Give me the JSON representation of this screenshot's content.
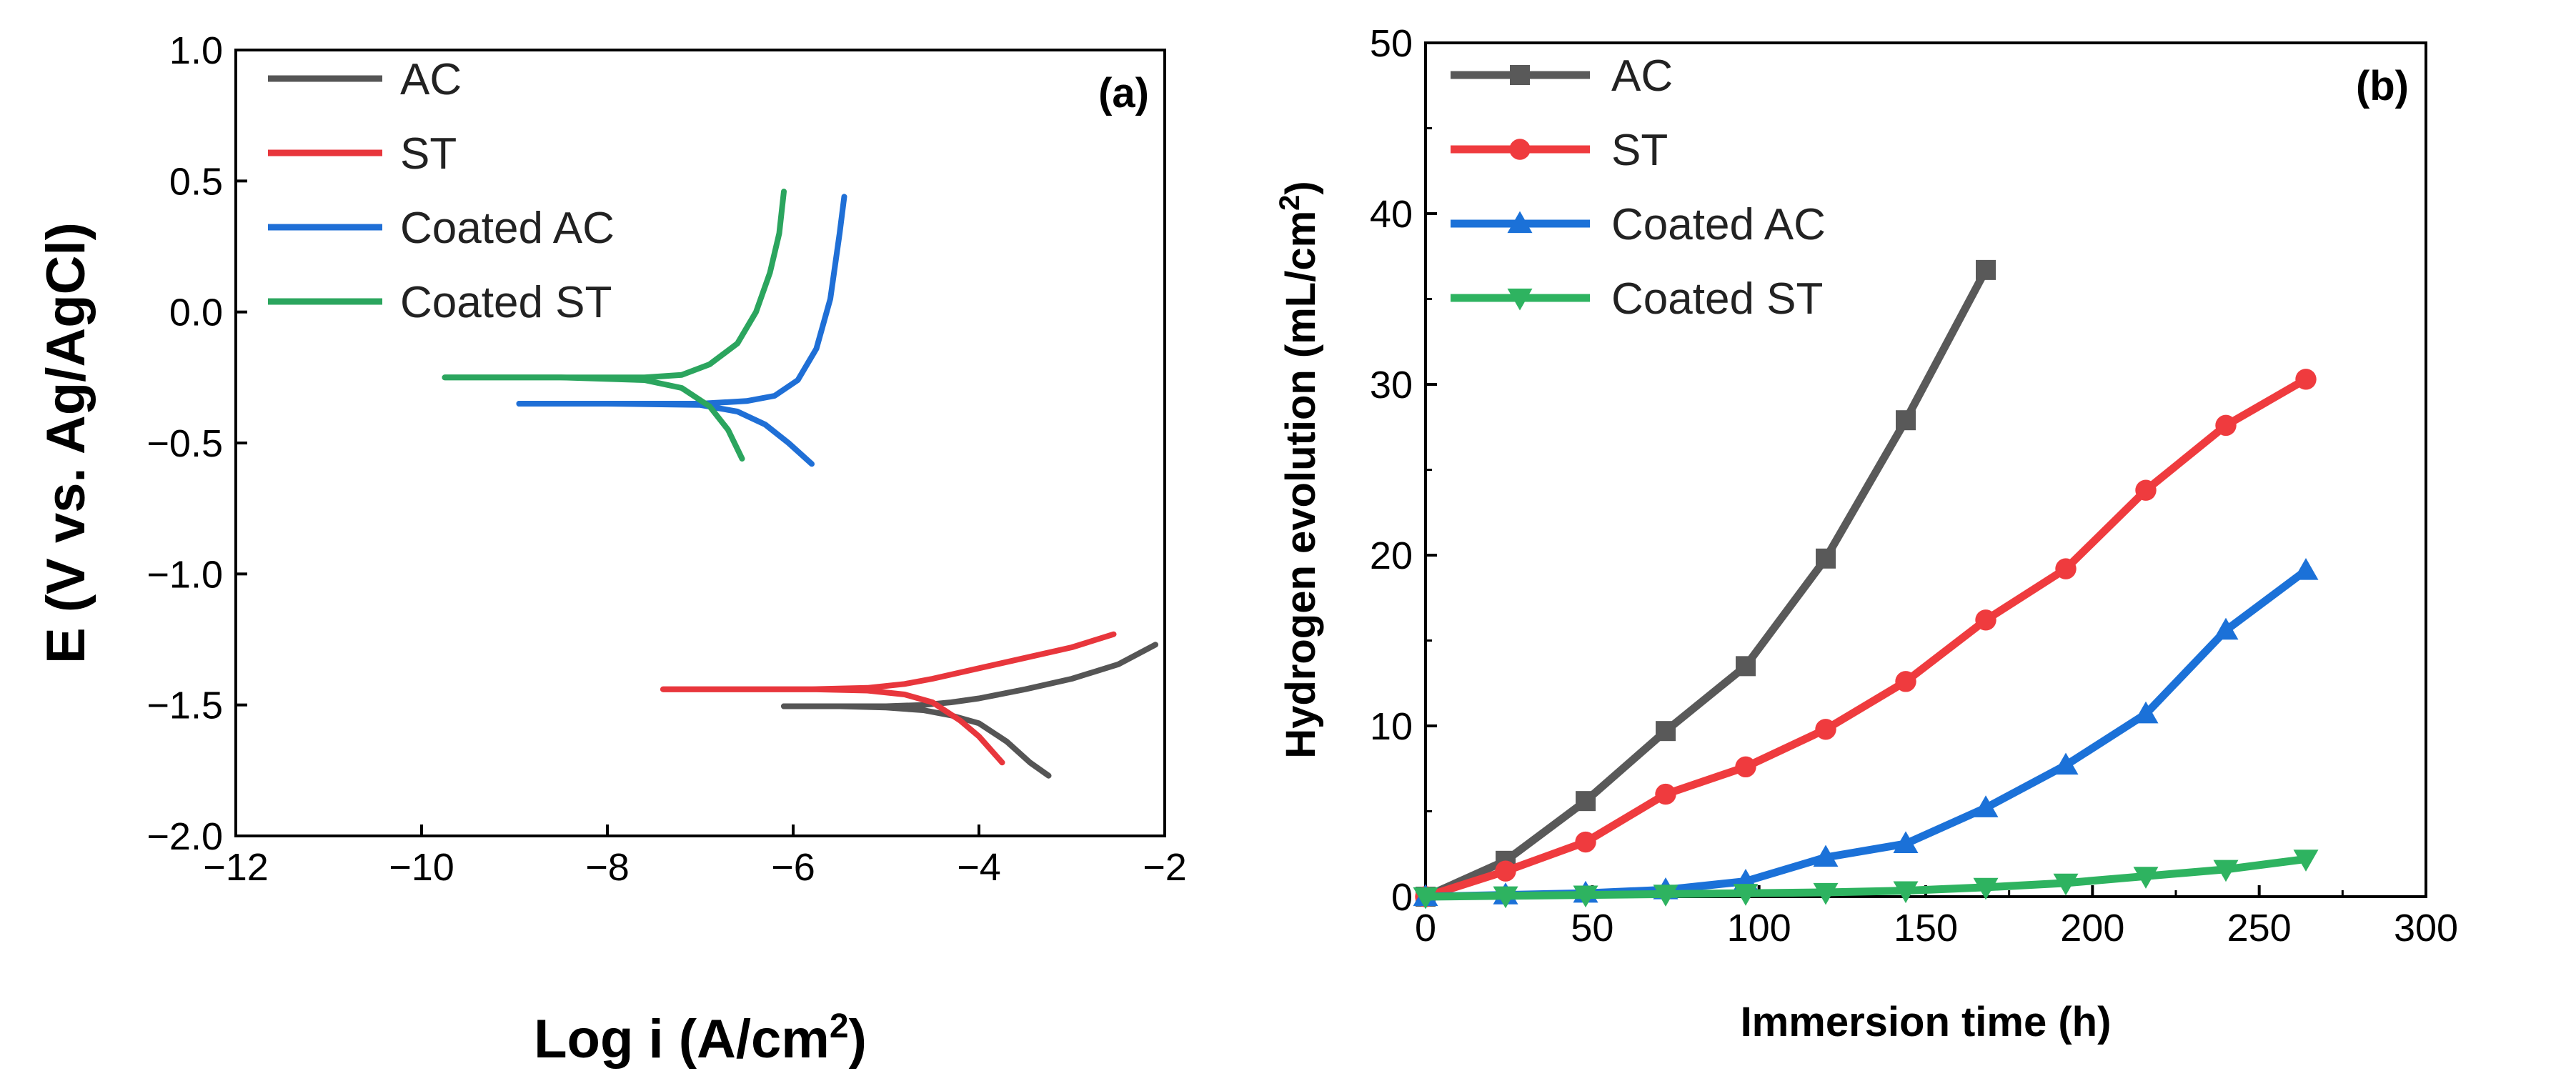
{
  "chart_data": [
    {
      "type": "line",
      "panel_label": "(a)",
      "xlabel_main": "Log i (A/cm",
      "xlabel_sup": "2",
      "xlabel_end": ")",
      "ylabel": "E (V vs. Ag/AgCl)",
      "xlim": [
        -12,
        -2
      ],
      "ylim": [
        -2.0,
        1.0
      ],
      "xticks": [
        -12,
        -10,
        -8,
        -6,
        -4,
        -2
      ],
      "xtick_labels": [
        "−12",
        "−10",
        "−8",
        "−6",
        "−4",
        "−2"
      ],
      "yticks": [
        1.0,
        0.5,
        0.0,
        -0.5,
        -1.0,
        -1.5,
        -2.0
      ],
      "ytick_labels": [
        "1.0",
        "0.5",
        "0.0",
        "−0.5",
        "−1.0",
        "−1.5",
        "−2.0"
      ],
      "legend": {
        "position": "top-left"
      },
      "series": [
        {
          "name": "AC",
          "color": "#555555",
          "branches": [
            [
              [
                -6.1,
                -1.505
              ],
              [
                -5.5,
                -1.505
              ],
              [
                -5.0,
                -1.505
              ],
              [
                -4.6,
                -1.5
              ],
              [
                -4.3,
                -1.49
              ],
              [
                -4.0,
                -1.475
              ],
              [
                -3.5,
                -1.44
              ],
              [
                -3.0,
                -1.4
              ],
              [
                -2.5,
                -1.345
              ],
              [
                -2.1,
                -1.27
              ]
            ],
            [
              [
                -6.1,
                -1.505
              ],
              [
                -5.5,
                -1.505
              ],
              [
                -5.0,
                -1.51
              ],
              [
                -4.6,
                -1.52
              ],
              [
                -4.3,
                -1.54
              ],
              [
                -4.0,
                -1.57
              ],
              [
                -3.7,
                -1.64
              ],
              [
                -3.45,
                -1.72
              ],
              [
                -3.25,
                -1.77
              ]
            ]
          ]
        },
        {
          "name": "ST",
          "color": "#e8363c",
          "branches": [
            [
              [
                -7.4,
                -1.44
              ],
              [
                -6.5,
                -1.44
              ],
              [
                -5.8,
                -1.44
              ],
              [
                -5.2,
                -1.435
              ],
              [
                -4.8,
                -1.42
              ],
              [
                -4.5,
                -1.4
              ],
              [
                -4.0,
                -1.36
              ],
              [
                -3.5,
                -1.32
              ],
              [
                -3.0,
                -1.28
              ],
              [
                -2.55,
                -1.23
              ]
            ],
            [
              [
                -7.4,
                -1.44
              ],
              [
                -6.5,
                -1.44
              ],
              [
                -5.8,
                -1.44
              ],
              [
                -5.2,
                -1.445
              ],
              [
                -4.8,
                -1.46
              ],
              [
                -4.5,
                -1.49
              ],
              [
                -4.2,
                -1.56
              ],
              [
                -4.0,
                -1.62
              ],
              [
                -3.75,
                -1.72
              ]
            ]
          ]
        },
        {
          "name": "Coated AC",
          "color": "#1f6fd6",
          "branches": [
            [
              [
                -8.95,
                -0.35
              ],
              [
                -8.0,
                -0.35
              ],
              [
                -7.0,
                -0.35
              ],
              [
                -6.5,
                -0.34
              ],
              [
                -6.2,
                -0.32
              ],
              [
                -5.95,
                -0.26
              ],
              [
                -5.75,
                -0.14
              ],
              [
                -5.6,
                0.05
              ],
              [
                -5.5,
                0.3
              ],
              [
                -5.45,
                0.44
              ]
            ],
            [
              [
                -8.95,
                -0.35
              ],
              [
                -8.0,
                -0.35
              ],
              [
                -7.0,
                -0.355
              ],
              [
                -6.6,
                -0.38
              ],
              [
                -6.3,
                -0.43
              ],
              [
                -6.05,
                -0.5
              ],
              [
                -5.8,
                -0.58
              ]
            ]
          ]
        },
        {
          "name": "Coated ST",
          "color": "#2ba55e",
          "branches": [
            [
              [
                -9.75,
                -0.25
              ],
              [
                -8.5,
                -0.25
              ],
              [
                -7.6,
                -0.25
              ],
              [
                -7.2,
                -0.24
              ],
              [
                -6.9,
                -0.2
              ],
              [
                -6.6,
                -0.12
              ],
              [
                -6.4,
                0.0
              ],
              [
                -6.25,
                0.15
              ],
              [
                -6.15,
                0.3
              ],
              [
                -6.1,
                0.46
              ]
            ],
            [
              [
                -9.75,
                -0.25
              ],
              [
                -8.5,
                -0.25
              ],
              [
                -7.6,
                -0.26
              ],
              [
                -7.2,
                -0.29
              ],
              [
                -6.9,
                -0.36
              ],
              [
                -6.7,
                -0.45
              ],
              [
                -6.55,
                -0.56
              ]
            ]
          ]
        }
      ]
    },
    {
      "type": "line",
      "panel_label": "(b)",
      "xlabel": "Immersion time (h)",
      "ylabel_main": "Hydrogen evolution (mL/cm",
      "ylabel_sup": "2",
      "ylabel_end": ")",
      "xlim": [
        0,
        300
      ],
      "ylim": [
        0,
        50
      ],
      "xticks": [
        0,
        50,
        100,
        150,
        200,
        250,
        300
      ],
      "xtick_labels": [
        "0",
        "50",
        "100",
        "150",
        "200",
        "250",
        "300"
      ],
      "yticks": [
        0,
        10,
        20,
        30,
        40,
        50
      ],
      "ytick_labels": [
        "0",
        "10",
        "20",
        "30",
        "40",
        "50"
      ],
      "legend": {
        "position": "top-left"
      },
      "series": [
        {
          "name": "AC",
          "color": "#595959",
          "marker": "square",
          "x": [
            0,
            24,
            48,
            72,
            96,
            120,
            144,
            168
          ],
          "values": [
            0,
            2.1,
            5.6,
            9.7,
            13.5,
            19.8,
            27.9,
            36.7
          ]
        },
        {
          "name": "ST",
          "color": "#ef3b3e",
          "marker": "circle",
          "x": [
            0,
            24,
            48,
            72,
            96,
            120,
            144,
            168,
            192,
            216,
            240,
            264
          ],
          "values": [
            0,
            1.5,
            3.2,
            6.0,
            7.6,
            9.8,
            12.6,
            16.2,
            19.2,
            23.8,
            27.6,
            30.3
          ]
        },
        {
          "name": "Coated AC",
          "color": "#1b71d8",
          "marker": "triangle-up",
          "x": [
            0,
            24,
            48,
            72,
            96,
            120,
            144,
            168,
            192,
            216,
            240,
            264
          ],
          "values": [
            0,
            0.1,
            0.2,
            0.4,
            0.9,
            2.3,
            3.1,
            5.2,
            7.7,
            10.7,
            15.6,
            19.1
          ]
        },
        {
          "name": "Coated ST",
          "color": "#2eb360",
          "marker": "triangle-down",
          "x": [
            0,
            24,
            48,
            72,
            96,
            120,
            144,
            168,
            192,
            216,
            240,
            264
          ],
          "values": [
            0,
            0.05,
            0.1,
            0.15,
            0.2,
            0.25,
            0.35,
            0.55,
            0.8,
            1.2,
            1.6,
            2.2
          ]
        }
      ]
    }
  ]
}
